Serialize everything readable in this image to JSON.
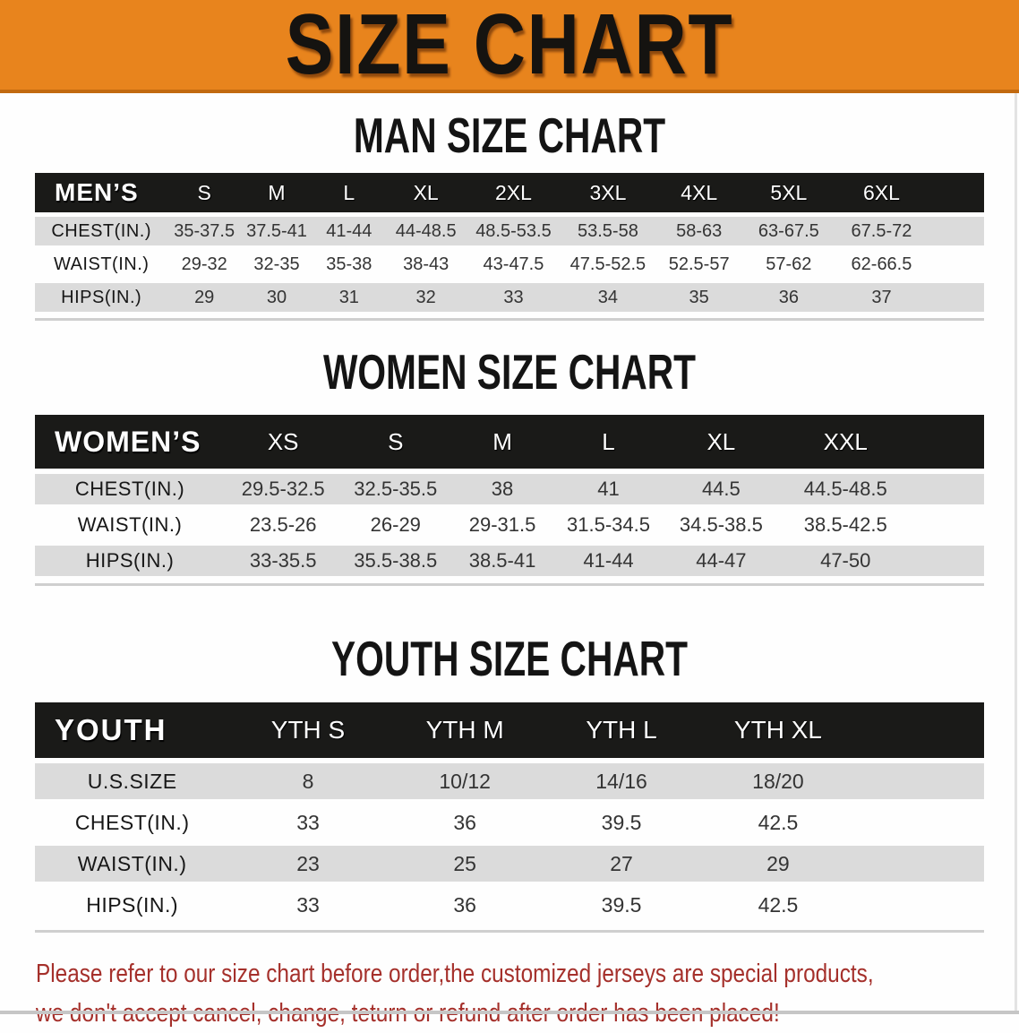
{
  "banner": {
    "title": "SIZE CHART"
  },
  "sections": [
    {
      "id": "men",
      "heading": "MAN SIZE CHART",
      "corner_label": "MEN’S",
      "columns": [
        "S",
        "M",
        "L",
        "XL",
        "2XL",
        "3XL",
        "4XL",
        "5XL",
        "6XL"
      ],
      "rows": [
        {
          "label": "CHEST(IN.)",
          "values": [
            "35-37.5",
            "37.5-41",
            "41-44",
            "44-48.5",
            "48.5-53.5",
            "53.5-58",
            "58-63",
            "63-67.5",
            "67.5-72"
          ]
        },
        {
          "label": "WAIST(IN.)",
          "values": [
            "29-32",
            "32-35",
            "35-38",
            "38-43",
            "43-47.5",
            "47.5-52.5",
            "52.5-57",
            "57-62",
            "62-66.5"
          ]
        },
        {
          "label": "HIPS(IN.)",
          "values": [
            "29",
            "30",
            "31",
            "32",
            "33",
            "34",
            "35",
            "36",
            "37"
          ]
        }
      ]
    },
    {
      "id": "women",
      "heading": "WOMEN SIZE CHART",
      "corner_label": "WOMEN’S",
      "columns": [
        "XS",
        "S",
        "M",
        "L",
        "XL",
        "XXL"
      ],
      "rows": [
        {
          "label": "CHEST(IN.)",
          "values": [
            "29.5-32.5",
            "32.5-35.5",
            "38",
            "41",
            "44.5",
            "44.5-48.5"
          ]
        },
        {
          "label": "WAIST(IN.)",
          "values": [
            "23.5-26",
            "26-29",
            "29-31.5",
            "31.5-34.5",
            "34.5-38.5",
            "38.5-42.5"
          ]
        },
        {
          "label": "HIPS(IN.)",
          "values": [
            "33-35.5",
            "35.5-38.5",
            "38.5-41",
            "41-44",
            "44-47",
            "47-50"
          ]
        }
      ]
    },
    {
      "id": "youth",
      "heading": "YOUTH SIZE CHART",
      "corner_label": "YOUTH",
      "columns": [
        "YTH S",
        "YTH M",
        "YTH L",
        "YTH XL"
      ],
      "rows": [
        {
          "label": "U.S.SIZE",
          "values": [
            "8",
            "10/12",
            "14/16",
            "18/20"
          ]
        },
        {
          "label": "CHEST(IN.)",
          "values": [
            "33",
            "36",
            "39.5",
            "42.5"
          ]
        },
        {
          "label": "WAIST(IN.)",
          "values": [
            "23",
            "25",
            "27",
            "29"
          ]
        },
        {
          "label": "HIPS(IN.)",
          "values": [
            "33",
            "36",
            "39.5",
            "42.5"
          ]
        }
      ]
    }
  ],
  "footer": {
    "line1": "Please refer to our size chart before order,the customized jerseys are special products,",
    "line2": "we don't accept cancel, change, teturn or refund after order has been placed!"
  },
  "colors": {
    "banner_orange": "#E8841D",
    "banner_edge": "#C26A10",
    "band_black": "#1A1A18",
    "row_gray": "#DBDBDB",
    "footer_red": "#A5302B"
  }
}
